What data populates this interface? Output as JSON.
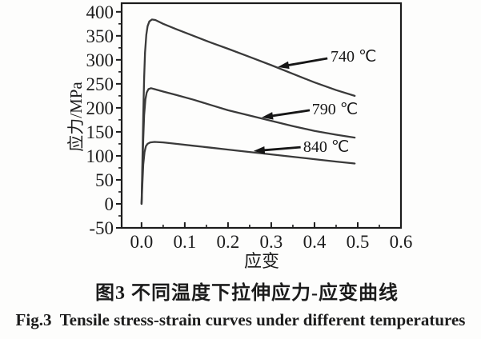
{
  "figure": {
    "caption_cn": "图3 不同温度下拉伸应力-应变曲线",
    "caption_en": "Fig.3  Tensile stress-strain curves under different temperatures"
  },
  "chart_data": {
    "type": "line",
    "title": "",
    "xlabel": "应变",
    "ylabel": "应力/MPa",
    "xlim": [
      -0.046,
      0.6
    ],
    "ylim": [
      -50,
      418
    ],
    "grid": false,
    "frame": "box",
    "legend_position": "none",
    "line_color": "#3a3a3a",
    "axis_color": "#1c1c1c",
    "x_ticks": {
      "values": [
        0.0,
        0.1,
        0.2,
        0.3,
        0.4,
        0.5,
        0.6
      ],
      "labels": [
        "0.0",
        "0.1",
        "0.2",
        "0.3",
        "0.4",
        "0.5",
        "0.6"
      ],
      "minor_values": [
        0.05,
        0.15,
        0.25,
        0.35,
        0.45,
        0.55
      ]
    },
    "y_ticks": {
      "values": [
        -50,
        0,
        50,
        100,
        150,
        200,
        250,
        300,
        350,
        400
      ],
      "labels": [
        "-50",
        "0",
        "50",
        "100",
        "150",
        "200",
        "250",
        "300",
        "350",
        "400"
      ],
      "minor_values": [
        -25,
        25,
        75,
        125,
        175,
        225,
        275,
        325,
        375
      ]
    },
    "series": [
      {
        "id": "740c",
        "name": "740 ℃",
        "points": [
          [
            0.0,
            0
          ],
          [
            0.002,
            85
          ],
          [
            0.004,
            185
          ],
          [
            0.006,
            262
          ],
          [
            0.008,
            315
          ],
          [
            0.011,
            352
          ],
          [
            0.014,
            370
          ],
          [
            0.018,
            380
          ],
          [
            0.024,
            384
          ],
          [
            0.032,
            383
          ],
          [
            0.05,
            375
          ],
          [
            0.08,
            364
          ],
          [
            0.12,
            350
          ],
          [
            0.16,
            336
          ],
          [
            0.2,
            323
          ],
          [
            0.25,
            306
          ],
          [
            0.3,
            289
          ],
          [
            0.35,
            271
          ],
          [
            0.4,
            253
          ],
          [
            0.45,
            237
          ],
          [
            0.493,
            225
          ]
        ]
      },
      {
        "id": "790c",
        "name": "790 ℃",
        "points": [
          [
            0.0,
            0
          ],
          [
            0.002,
            65
          ],
          [
            0.004,
            135
          ],
          [
            0.006,
            185
          ],
          [
            0.009,
            218
          ],
          [
            0.012,
            232
          ],
          [
            0.016,
            239
          ],
          [
            0.022,
            241
          ],
          [
            0.03,
            239
          ],
          [
            0.05,
            234
          ],
          [
            0.08,
            227
          ],
          [
            0.12,
            217
          ],
          [
            0.16,
            206
          ],
          [
            0.2,
            195
          ],
          [
            0.25,
            184
          ],
          [
            0.3,
            173
          ],
          [
            0.35,
            162
          ],
          [
            0.4,
            152
          ],
          [
            0.45,
            144
          ],
          [
            0.493,
            138
          ]
        ]
      },
      {
        "id": "840c",
        "name": "840 ℃",
        "points": [
          [
            0.0,
            0
          ],
          [
            0.002,
            42
          ],
          [
            0.004,
            82
          ],
          [
            0.007,
            108
          ],
          [
            0.01,
            120
          ],
          [
            0.014,
            125
          ],
          [
            0.02,
            128
          ],
          [
            0.03,
            129
          ],
          [
            0.05,
            128
          ],
          [
            0.08,
            125
          ],
          [
            0.12,
            121
          ],
          [
            0.16,
            117
          ],
          [
            0.2,
            113
          ],
          [
            0.25,
            108
          ],
          [
            0.3,
            103
          ],
          [
            0.35,
            98
          ],
          [
            0.4,
            93
          ],
          [
            0.45,
            88
          ],
          [
            0.493,
            84
          ]
        ]
      }
    ],
    "annotations": [
      {
        "id": "740c",
        "label": "740 ℃",
        "text": [
          0.437,
          308
        ],
        "tail": [
          0.43,
          303
        ],
        "tip": [
          0.315,
          285
        ]
      },
      {
        "id": "790c",
        "label": "790 ℃",
        "text": [
          0.394,
          198
        ],
        "tail": [
          0.389,
          195
        ],
        "tip": [
          0.278,
          180
        ]
      },
      {
        "id": "840c",
        "label": "840 ℃",
        "text": [
          0.374,
          120
        ],
        "tail": [
          0.368,
          118
        ],
        "tip": [
          0.259,
          110
        ]
      }
    ]
  }
}
